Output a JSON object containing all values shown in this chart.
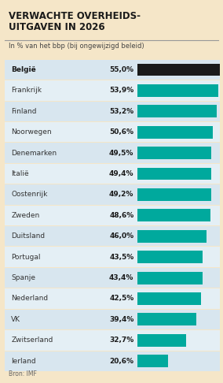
{
  "title_line1": "VERWACHTE OVERHEIDS-",
  "title_line2": "UITGAVEN IN 2026",
  "subtitle": "In % van het bbp (bij ongewijzigd beleid)",
  "source": "Bron: IMF",
  "countries": [
    "België",
    "Frankrijk",
    "Finland",
    "Noorwegen",
    "Denemarken",
    "Italië",
    "Oostenrijk",
    "Zweden",
    "Duitsland",
    "Portugal",
    "Spanje",
    "Nederland",
    "VK",
    "Zwitserland",
    "Ierland"
  ],
  "values": [
    55.0,
    53.9,
    53.2,
    50.6,
    49.5,
    49.4,
    49.2,
    48.6,
    46.0,
    43.5,
    43.4,
    42.5,
    39.4,
    32.7,
    20.6
  ],
  "labels": [
    "55,0%",
    "53,9%",
    "53,2%",
    "50,6%",
    "49,5%",
    "49,4%",
    "49,2%",
    "48,6%",
    "46,0%",
    "43,5%",
    "43,4%",
    "42,5%",
    "39,4%",
    "32,7%",
    "20,6%"
  ],
  "bar_color_belgium": "#1a1a1a",
  "bar_color_others": "#00a99d",
  "background_color": "#f5e6c8",
  "row_color_even": "#d8e6ef",
  "row_color_odd": "#e4eff5",
  "title_color": "#1a1a1a",
  "subtitle_color": "#444444",
  "value_color": "#1a1a1a",
  "country_color_belgium": "#1a1a1a",
  "country_color_others": "#333333",
  "bar_max": 55.0,
  "separator_color": "#999999"
}
